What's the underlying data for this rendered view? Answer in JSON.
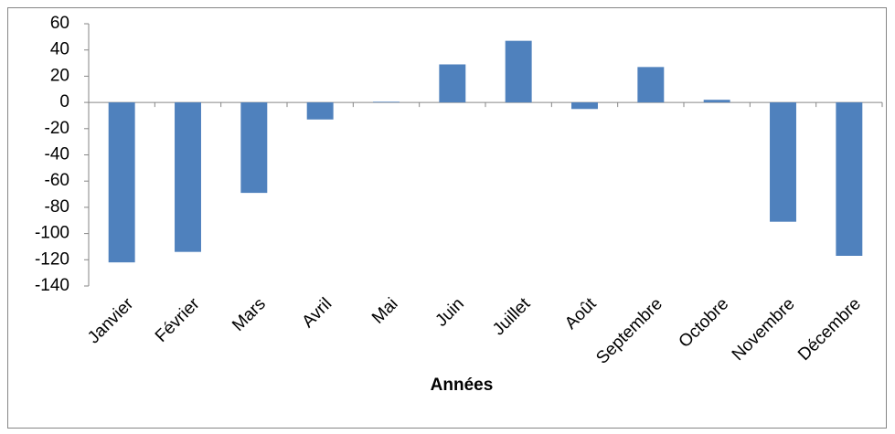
{
  "chart_data": {
    "type": "bar",
    "x_label": "Années",
    "categories": [
      "Janvier",
      "Février",
      "Mars",
      "Avril",
      "Mai",
      "Juin",
      "Juillet",
      "Août",
      "Septembre",
      "Octobre",
      "Novembre",
      "Décembre"
    ],
    "values": [
      -122,
      -114,
      -69,
      -13,
      0.5,
      29,
      47,
      -5,
      27,
      2,
      -91,
      -117
    ],
    "color": "#4f81bd",
    "ylim": [
      -140,
      60
    ],
    "yticks": [
      -140,
      -120,
      -100,
      -80,
      -60,
      -40,
      -20,
      0,
      20,
      40,
      60
    ],
    "grid": false
  }
}
